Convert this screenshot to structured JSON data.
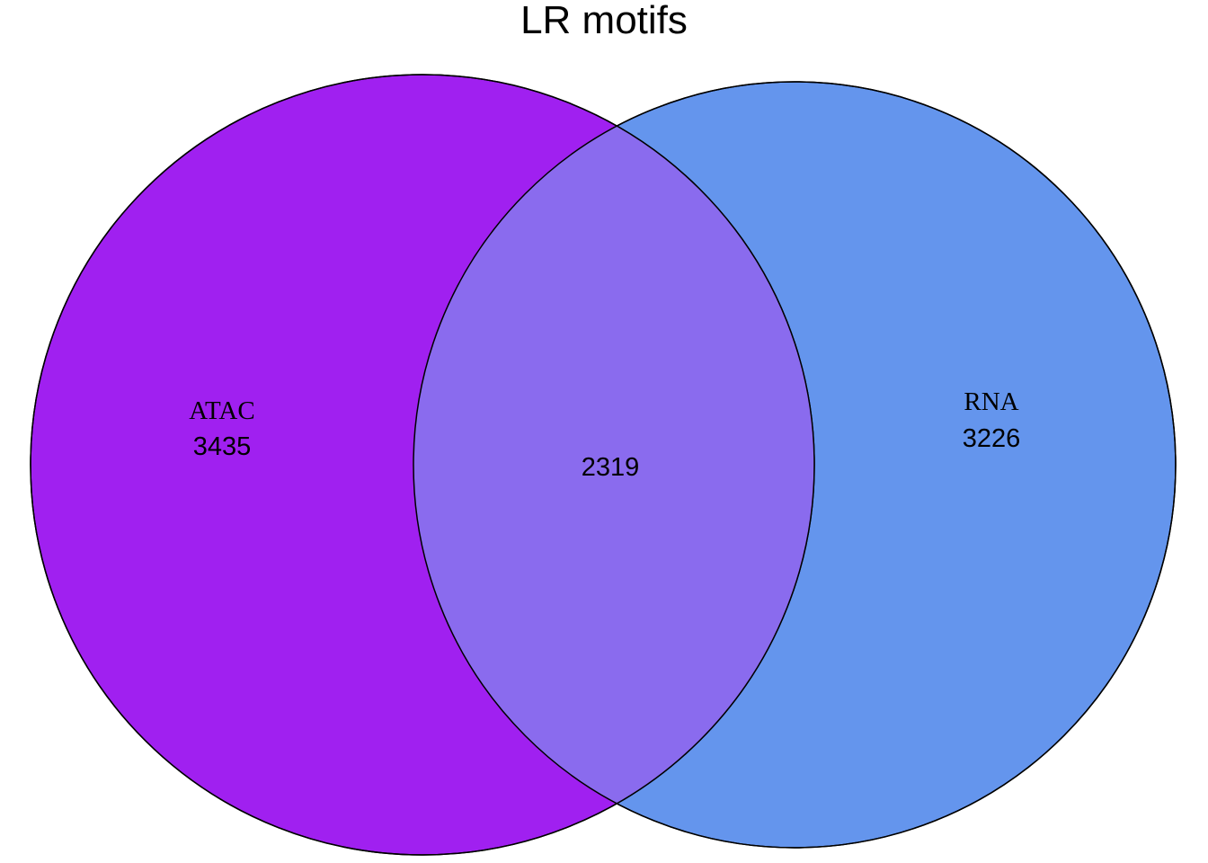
{
  "title": "LR motifs",
  "sets": [
    {
      "name": "ATAC",
      "only_count": "3435",
      "color": "#A020F0"
    },
    {
      "name": "RNA",
      "only_count": "3226",
      "color": "#6495ED"
    }
  ],
  "intersection": {
    "count": "2319",
    "color": "#8A6BEE"
  },
  "outline_color": "#000000"
}
